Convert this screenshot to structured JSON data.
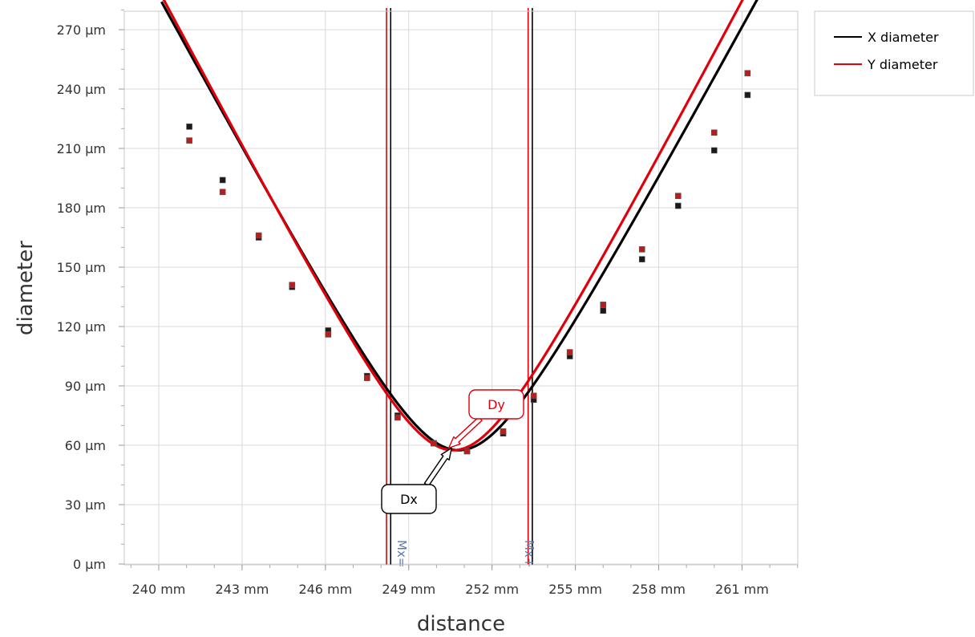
{
  "chart_data": {
    "type": "scatter",
    "xlabel": "distance",
    "ylabel": "diameter",
    "x_unit": "mm",
    "y_unit": "µm",
    "xlim": [
      239,
      263
    ],
    "ylim": [
      0,
      280
    ],
    "x_ticks": [
      "240 mm",
      "243 mm",
      "246 mm",
      "249 mm",
      "252 mm",
      "255 mm",
      "258 mm",
      "261 mm"
    ],
    "y_ticks": [
      "0 µm",
      "30 µm",
      "60 µm",
      "90 µm",
      "120 µm",
      "150 µm",
      "180 µm",
      "210 µm",
      "240 µm",
      "270 µm"
    ],
    "grid": true,
    "legend_position": "top-right",
    "series": [
      {
        "name": "X diameter",
        "color": "#000000",
        "points": [
          {
            "x": 241.1,
            "y": 221
          },
          {
            "x": 242.3,
            "y": 194
          },
          {
            "x": 243.6,
            "y": 165
          },
          {
            "x": 244.8,
            "y": 140
          },
          {
            "x": 246.1,
            "y": 118
          },
          {
            "x": 247.5,
            "y": 95
          },
          {
            "x": 248.6,
            "y": 75
          },
          {
            "x": 249.9,
            "y": 61
          },
          {
            "x": 251.1,
            "y": 57
          },
          {
            "x": 252.4,
            "y": 66
          },
          {
            "x": 253.5,
            "y": 83
          },
          {
            "x": 254.8,
            "y": 105
          },
          {
            "x": 256.0,
            "y": 128
          },
          {
            "x": 257.4,
            "y": 154
          },
          {
            "x": 258.7,
            "y": 181
          },
          {
            "x": 260.0,
            "y": 209
          },
          {
            "x": 261.2,
            "y": 237
          }
        ],
        "fit": {
          "z0": 250.8,
          "w0": 57.5,
          "a": 26.0,
          "x_from": 240.1,
          "x_to": 261.8
        }
      },
      {
        "name": "Y diameter",
        "color": "#e0000b",
        "points": [
          {
            "x": 241.1,
            "y": 214
          },
          {
            "x": 242.3,
            "y": 188
          },
          {
            "x": 243.6,
            "y": 166
          },
          {
            "x": 244.8,
            "y": 141
          },
          {
            "x": 246.1,
            "y": 116
          },
          {
            "x": 247.5,
            "y": 94
          },
          {
            "x": 248.6,
            "y": 74
          },
          {
            "x": 249.9,
            "y": 61
          },
          {
            "x": 251.1,
            "y": 57
          },
          {
            "x": 252.4,
            "y": 67
          },
          {
            "x": 253.5,
            "y": 85
          },
          {
            "x": 254.8,
            "y": 107
          },
          {
            "x": 256.0,
            "y": 131
          },
          {
            "x": 257.4,
            "y": 159
          },
          {
            "x": 258.7,
            "y": 186
          },
          {
            "x": 260.0,
            "y": 218
          },
          {
            "x": 261.2,
            "y": 248
          }
        ],
        "fit": {
          "z0": 250.6,
          "w0": 57.5,
          "a": 26.8,
          "x_from": 240.1,
          "x_to": 261.8
        }
      }
    ],
    "vertical_markers": [
      {
        "x": 248.2,
        "color": "#e0000b",
        "series": "Y diameter"
      },
      {
        "x": 248.35,
        "color": "#000000",
        "series": "X diameter"
      },
      {
        "x": 253.3,
        "color": "#e0000b",
        "series": "Y diameter"
      },
      {
        "x": 253.45,
        "color": "#000000",
        "series": "X diameter"
      }
    ],
    "marker_labels": [
      {
        "x": 248.6,
        "text": "Мх="
      },
      {
        "x": 253.2,
        "text": "Мх+"
      }
    ],
    "annotations": [
      {
        "label": "Dx",
        "color": "#000000",
        "points_to": {
          "x": 250.6,
          "y": 57
        }
      },
      {
        "label": "Dy",
        "color": "#e0000b",
        "points_to": {
          "x": 250.5,
          "y": 57
        }
      }
    ]
  }
}
